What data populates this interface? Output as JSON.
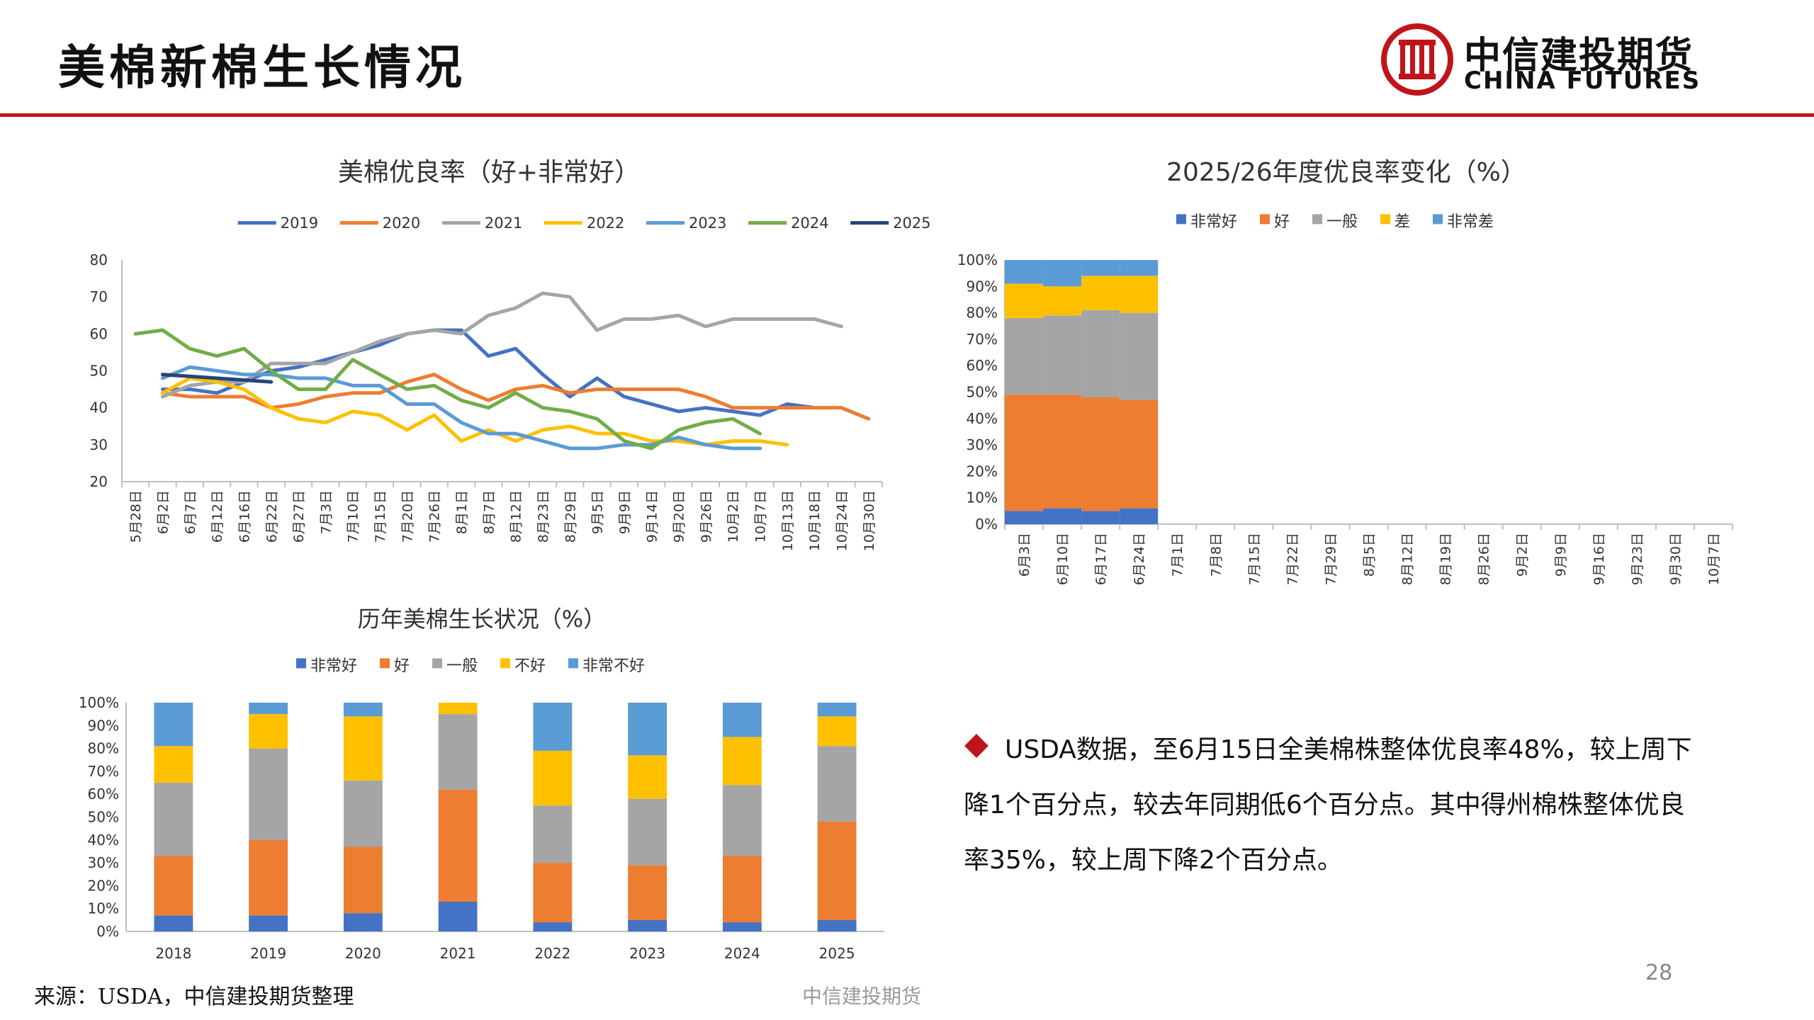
{
  "header": {
    "title": "美棉新棉生长情况",
    "brand_cn": "中信建投期货",
    "brand_en": "CHINA FUTURES"
  },
  "colors": {
    "accent": "#c0141b",
    "series": [
      "#4472c4",
      "#ed7d31",
      "#a5a5a5",
      "#ffc000",
      "#5b9bd5",
      "#70ad47",
      "#264478"
    ]
  },
  "bullet": {
    "text": "USDA数据，至6月15日全美棉株整体优良率48%，较上周下降1个百分点，较去年同期低6个百分点。其中得州棉株整体优良率35%，较上周下降2个百分点。"
  },
  "footer": {
    "source": "来源：USDA，中信建投期货整理",
    "brand": "中信建投期货",
    "page": "28"
  },
  "chart_data": [
    {
      "type": "line",
      "title": "美棉优良率（好+非常好）",
      "legend_position": "top",
      "ylim": [
        20,
        80
      ],
      "yticks": [
        "80",
        "70",
        "60",
        "50",
        "40",
        "30",
        "20"
      ],
      "x": [
        "5月28日",
        "6月2日",
        "6月7日",
        "6月12日",
        "6月16日",
        "6月22日",
        "6月27日",
        "7月3日",
        "7月10日",
        "7月15日",
        "7月20日",
        "7月26日",
        "8月1日",
        "8月7日",
        "8月12日",
        "8月23日",
        "8月29日",
        "9月5日",
        "9月9日",
        "9月14日",
        "9月20日",
        "9月26日",
        "10月2日",
        "10月7日",
        "10月13日",
        "10月18日",
        "10月24日",
        "10月30日"
      ],
      "series": [
        {
          "name": "2019",
          "color": "#4472c4",
          "values": [
            null,
            45,
            45,
            44,
            47,
            50,
            51,
            53,
            55,
            57,
            60,
            61,
            61,
            54,
            56,
            49,
            43,
            48,
            43,
            41,
            39,
            40,
            39,
            38,
            41,
            40,
            null,
            null
          ]
        },
        {
          "name": "2020",
          "color": "#ed7d31",
          "values": [
            null,
            44,
            43,
            43,
            43,
            40,
            41,
            43,
            44,
            44,
            47,
            49,
            45,
            42,
            45,
            46,
            44,
            45,
            45,
            45,
            45,
            43,
            40,
            40,
            40,
            40,
            40,
            37
          ]
        },
        {
          "name": "2021",
          "color": "#a5a5a5",
          "values": [
            null,
            43,
            46,
            47,
            47,
            52,
            52,
            52,
            55,
            58,
            60,
            61,
            60,
            65,
            67,
            71,
            70,
            61,
            64,
            64,
            65,
            62,
            64,
            64,
            64,
            64,
            62,
            null
          ]
        },
        {
          "name": "2022",
          "color": "#ffc000",
          "values": [
            null,
            44,
            48,
            47,
            45,
            40,
            37,
            36,
            39,
            38,
            34,
            38,
            31,
            34,
            31,
            34,
            35,
            33,
            33,
            31,
            31,
            30,
            31,
            31,
            30,
            null,
            null,
            null
          ]
        },
        {
          "name": "2023",
          "color": "#5b9bd5",
          "values": [
            null,
            48,
            51,
            50,
            49,
            49,
            48,
            48,
            46,
            46,
            41,
            41,
            36,
            33,
            33,
            31,
            29,
            29,
            30,
            30,
            32,
            30,
            29,
            29,
            null,
            null,
            null,
            null
          ]
        },
        {
          "name": "2024",
          "color": "#70ad47",
          "values": [
            60,
            61,
            56,
            54,
            56,
            50,
            45,
            45,
            53,
            49,
            45,
            46,
            42,
            40,
            44,
            40,
            39,
            37,
            31,
            29,
            34,
            36,
            37,
            33,
            null,
            null,
            null,
            null
          ]
        },
        {
          "name": "2025",
          "color": "#264478",
          "values": [
            null,
            49,
            null,
            null,
            null,
            47,
            null,
            null,
            null,
            null,
            null,
            null,
            null,
            null,
            null,
            null,
            null,
            null,
            null,
            null,
            null,
            null,
            null,
            null,
            null,
            null,
            null,
            null
          ]
        }
      ]
    },
    {
      "type": "bar",
      "stacked": true,
      "title": "2025/26年度优良率变化（%）",
      "legend_position": "top",
      "ylim": [
        0,
        100
      ],
      "yticks": [
        "100%",
        "90%",
        "80%",
        "70%",
        "60%",
        "50%",
        "40%",
        "30%",
        "20%",
        "10%",
        "0%"
      ],
      "categories": [
        "6月3日",
        "6月10日",
        "6月17日",
        "6月24日",
        "7月1日",
        "7月8日",
        "7月15日",
        "7月22日",
        "7月29日",
        "8月5日",
        "8月12日",
        "8月19日",
        "8月26日",
        "9月2日",
        "9月9日",
        "9月16日",
        "9月23日",
        "9月30日",
        "10月7日"
      ],
      "series": [
        {
          "name": "非常好",
          "color": "#4472c4",
          "values": [
            5,
            6,
            5,
            6,
            null,
            null,
            null,
            null,
            null,
            null,
            null,
            null,
            null,
            null,
            null,
            null,
            null,
            null,
            null
          ]
        },
        {
          "name": "好",
          "color": "#ed7d31",
          "values": [
            44,
            43,
            43,
            41,
            null,
            null,
            null,
            null,
            null,
            null,
            null,
            null,
            null,
            null,
            null,
            null,
            null,
            null,
            null
          ]
        },
        {
          "name": "一般",
          "color": "#a5a5a5",
          "values": [
            29,
            30,
            33,
            33,
            null,
            null,
            null,
            null,
            null,
            null,
            null,
            null,
            null,
            null,
            null,
            null,
            null,
            null,
            null
          ]
        },
        {
          "name": "差",
          "color": "#ffc000",
          "values": [
            13,
            11,
            13,
            14,
            null,
            null,
            null,
            null,
            null,
            null,
            null,
            null,
            null,
            null,
            null,
            null,
            null,
            null,
            null
          ]
        },
        {
          "name": "非常差",
          "color": "#5b9bd5",
          "values": [
            9,
            10,
            6,
            6,
            null,
            null,
            null,
            null,
            null,
            null,
            null,
            null,
            null,
            null,
            null,
            null,
            null,
            null,
            null
          ]
        }
      ]
    },
    {
      "type": "bar",
      "stacked": true,
      "title": "历年美棉生长状况（%）",
      "legend_position": "top",
      "ylim": [
        0,
        100
      ],
      "yticks": [
        "100%",
        "90%",
        "80%",
        "70%",
        "60%",
        "50%",
        "40%",
        "30%",
        "20%",
        "10%",
        "0%"
      ],
      "categories": [
        "2018",
        "2019",
        "2020",
        "2021",
        "2022",
        "2023",
        "2024",
        "2025"
      ],
      "series": [
        {
          "name": "非常好",
          "color": "#4472c4",
          "values": [
            7,
            7,
            8,
            13,
            4,
            5,
            4,
            5
          ]
        },
        {
          "name": "好",
          "color": "#ed7d31",
          "values": [
            26,
            33,
            29,
            49,
            26,
            24,
            29,
            43
          ]
        },
        {
          "name": "一般",
          "color": "#a5a5a5",
          "values": [
            32,
            40,
            29,
            33,
            25,
            29,
            31,
            33
          ]
        },
        {
          "name": "不好",
          "color": "#ffc000",
          "values": [
            16,
            15,
            28,
            5,
            24,
            19,
            21,
            13
          ]
        },
        {
          "name": "非常不好",
          "color": "#5b9bd5",
          "values": [
            19,
            5,
            6,
            0,
            21,
            23,
            15,
            6
          ]
        }
      ]
    }
  ]
}
